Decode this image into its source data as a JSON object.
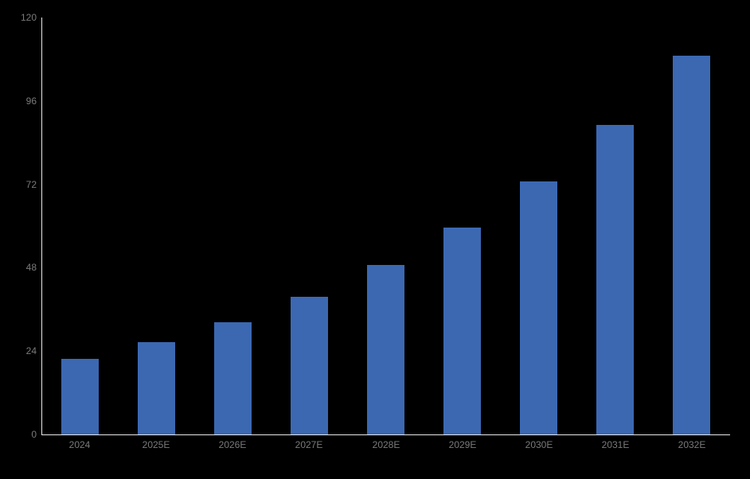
{
  "chart_data": {
    "type": "bar",
    "title": "",
    "xlabel": "",
    "ylabel": "",
    "categories": [
      "2024",
      "2025E",
      "2026E",
      "2027E",
      "2028E",
      "2029E",
      "2030E",
      "2031E",
      "2032E"
    ],
    "values": [
      21.8,
      26.5,
      32.3,
      39.7,
      48.7,
      59.5,
      72.8,
      89.0,
      108.9
    ],
    "ylim": [
      0,
      120
    ],
    "yticks": [
      0,
      24,
      48,
      72,
      96,
      120
    ],
    "grid": false,
    "legend_position": "none",
    "colors": {
      "background": "#000000",
      "bar": "#3c68b2",
      "axis": "#e7e7e7",
      "tick_label": "#7a7a7a"
    }
  }
}
